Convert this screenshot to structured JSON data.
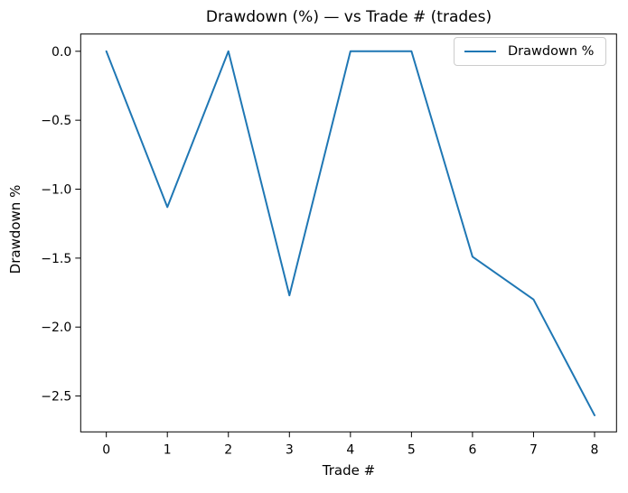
{
  "chart_data": {
    "type": "line",
    "title": "Drawdown (%) — vs Trade # (trades)",
    "xlabel": "Trade #",
    "ylabel": "Drawdown %",
    "x": [
      0,
      1,
      2,
      3,
      4,
      5,
      6,
      7,
      8
    ],
    "series": [
      {
        "name": "Drawdown %",
        "color": "#1f77b4",
        "values": [
          0.0,
          -1.13,
          0.0,
          -1.77,
          0.0,
          0.0,
          -1.49,
          -1.8,
          -2.64
        ]
      }
    ],
    "xlim": [
      -0.42,
      8.36
    ],
    "ylim": [
      -2.76,
      0.125
    ],
    "xticks": {
      "values": [
        0,
        1,
        2,
        3,
        4,
        5,
        6,
        7,
        8
      ],
      "labels": [
        "0",
        "1",
        "2",
        "3",
        "4",
        "5",
        "6",
        "7",
        "8"
      ]
    },
    "yticks": {
      "values": [
        0.0,
        -0.5,
        -1.0,
        -1.5,
        -2.0,
        -2.5
      ],
      "labels": [
        "0.0",
        "−0.5",
        "−1.0",
        "−1.5",
        "−2.0",
        "−2.5"
      ]
    },
    "grid": false,
    "legend_position": "upper right"
  },
  "style": {
    "line_color": "#1f77b4",
    "spine_color": "#000000",
    "legend_border_color": "#cccccc",
    "background": "#ffffff"
  }
}
